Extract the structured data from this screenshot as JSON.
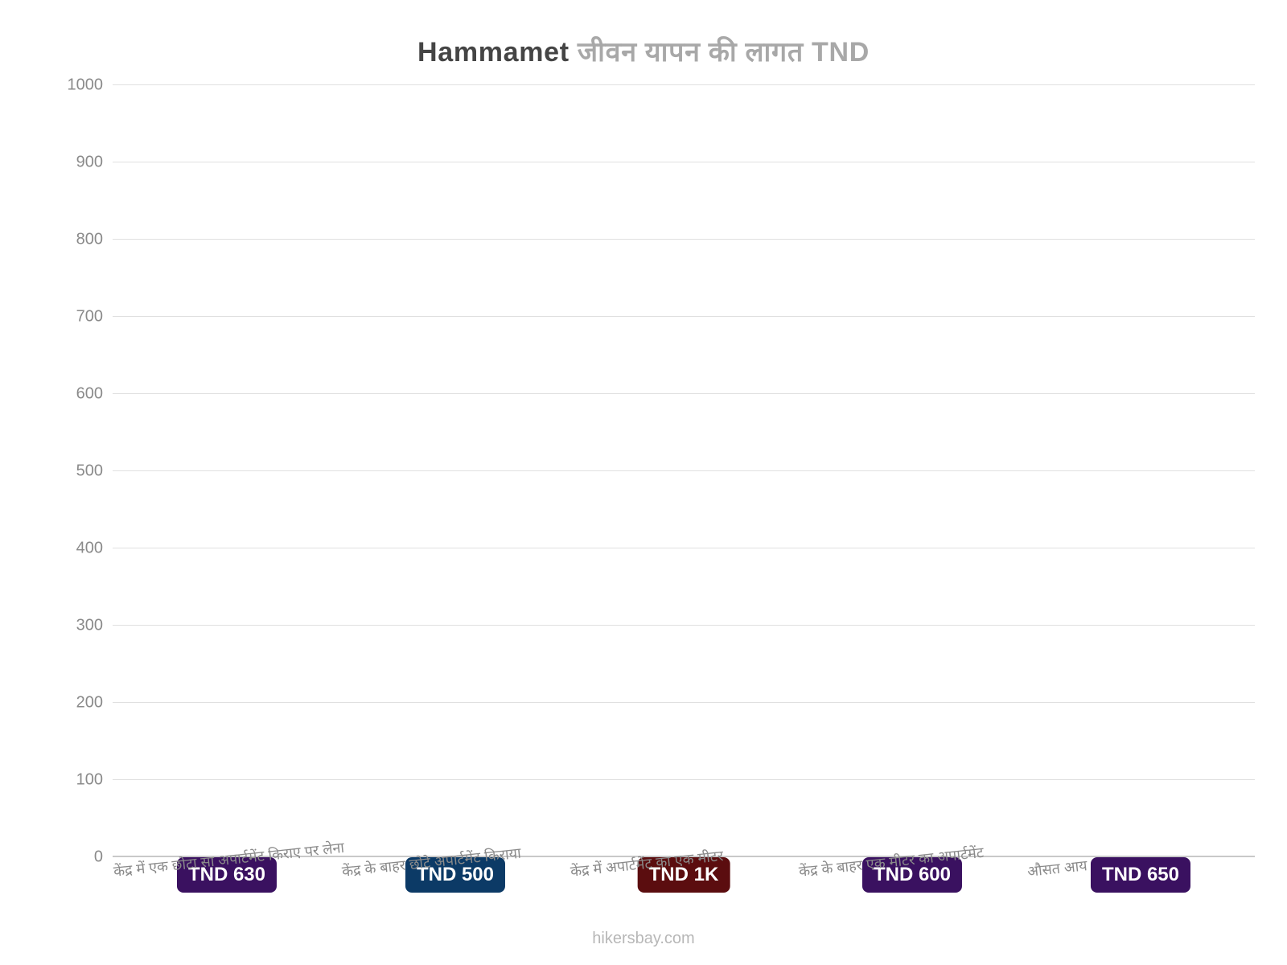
{
  "chart": {
    "type": "bar",
    "title": {
      "location": "Hammamet",
      "rest": "जीवन    यापन    की    लागत    TND",
      "fontsize_pt": 34,
      "location_color": "#454545",
      "rest_color": "#a8a8a8"
    },
    "background_color": "#ffffff",
    "grid_color": "#e0e0e0",
    "baseline_color": "#c9c9c9",
    "tick_label_color": "#8a8a8a",
    "ylim": [
      0,
      1000
    ],
    "ytick_step": 100,
    "yticks": [
      0,
      100,
      200,
      300,
      400,
      500,
      600,
      700,
      800,
      900,
      1000
    ],
    "bar_width_ratio": 0.62,
    "bar_label_fontsize_pt": 24,
    "x_label_fontsize_pt": 18,
    "x_label_rotation_deg": -6,
    "attribution": "hikersbay.com",
    "attribution_color": "#b7b7b7",
    "bars": [
      {
        "category": "केंद्र में एक छोटा सा अपार्टमेंट किराए पर लेना",
        "value": 630,
        "label": "TND 630",
        "bar_color": "#8a2be2",
        "label_bg": "#3a1160",
        "label_top_offset_pct": 42
      },
      {
        "category": "केंद्र के बाहर छोटे अपार्टमेंट किराया",
        "value": 500,
        "label": "TND 500",
        "bar_color": "#1e90ff",
        "label_bg": "#0c3a66",
        "label_top_offset_pct": 37
      },
      {
        "category": "केंद्र में अपार्टमेंट का एक मीटर",
        "value": 1000,
        "label": "TND 1K",
        "bar_color": "#e42023",
        "label_bg": "#5b0d0f",
        "label_top_offset_pct": 45
      },
      {
        "category": "केंद्र के बाहर एक मीटर का अपार्टमेंट",
        "value": 600,
        "label": "TND 600",
        "bar_color": "#8a2be2",
        "label_bg": "#3a1160",
        "label_top_offset_pct": 40
      },
      {
        "category": "औसत आय",
        "value": 650,
        "label": "TND 650",
        "bar_color": "#8a2be2",
        "label_bg": "#3a1160",
        "label_top_offset_pct": 43
      }
    ]
  }
}
